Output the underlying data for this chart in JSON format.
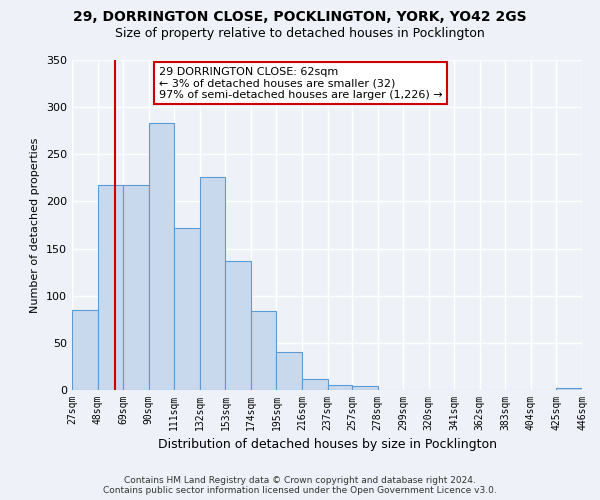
{
  "title": "29, DORRINGTON CLOSE, POCKLINGTON, YORK, YO42 2GS",
  "subtitle": "Size of property relative to detached houses in Pocklington",
  "xlabel": "Distribution of detached houses by size in Pocklington",
  "ylabel": "Number of detached properties",
  "bar_edges": [
    27,
    48,
    69,
    90,
    111,
    132,
    153,
    174,
    195,
    216,
    237,
    257,
    278,
    299,
    320,
    341,
    362,
    383,
    404,
    425,
    446
  ],
  "bar_heights": [
    85,
    217,
    217,
    283,
    172,
    226,
    137,
    84,
    40,
    12,
    5,
    4,
    0,
    0,
    0,
    0,
    0,
    0,
    0,
    2
  ],
  "bar_color": "#c8d9ed",
  "bar_edge_color": "#5b9bd5",
  "property_line_x": 62,
  "property_line_color": "#cc0000",
  "annotation_text": "29 DORRINGTON CLOSE: 62sqm\n← 3% of detached houses are smaller (32)\n97% of semi-detached houses are larger (1,226) →",
  "annotation_box_color": "#ffffff",
  "annotation_box_edge_color": "#cc0000",
  "ylim": [
    0,
    350
  ],
  "yticks": [
    0,
    50,
    100,
    150,
    200,
    250,
    300,
    350
  ],
  "tick_labels": [
    "27sqm",
    "48sqm",
    "69sqm",
    "90sqm",
    "111sqm",
    "132sqm",
    "153sqm",
    "174sqm",
    "195sqm",
    "216sqm",
    "237sqm",
    "257sqm",
    "278sqm",
    "299sqm",
    "320sqm",
    "341sqm",
    "362sqm",
    "383sqm",
    "404sqm",
    "425sqm",
    "446sqm"
  ],
  "footer_line1": "Contains HM Land Registry data © Crown copyright and database right 2024.",
  "footer_line2": "Contains public sector information licensed under the Open Government Licence v3.0.",
  "bg_color": "#eef2f8",
  "grid_color": "#ffffff",
  "title_fontsize": 10,
  "subtitle_fontsize": 9,
  "ylabel_fontsize": 8,
  "xlabel_fontsize": 9,
  "tick_fontsize": 7,
  "ytick_fontsize": 8,
  "footer_fontsize": 6.5,
  "annot_fontsize": 8
}
